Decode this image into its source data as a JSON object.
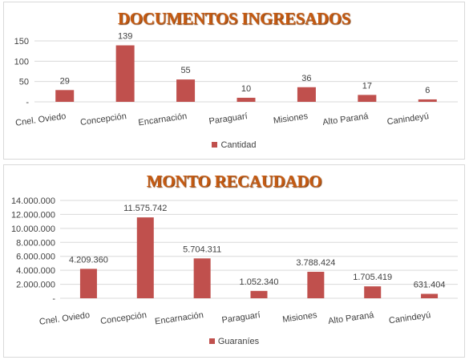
{
  "chart_data": [
    {
      "type": "bar",
      "title": "DOCUMENTOS INGRESADOS",
      "categories": [
        "Cnel. Oviedo",
        "Concepción",
        "Encarnación",
        "Paraguarí",
        "Misiones",
        "Alto Paraná",
        "Canindeyú"
      ],
      "series": [
        {
          "name": "Cantidad",
          "values": [
            29,
            139,
            55,
            10,
            36,
            17,
            6
          ]
        }
      ],
      "data_labels": [
        "29",
        "139",
        "55",
        "10",
        "36",
        "17",
        "6"
      ],
      "yticks": [
        0,
        50,
        100,
        150
      ],
      "ytick_labels": [
        "-",
        "50",
        "100",
        "150"
      ],
      "ylim": [
        0,
        150
      ],
      "grid": true,
      "legend": "bottom",
      "color": "#c0504d"
    },
    {
      "type": "bar",
      "title": "MONTO RECAUDADO",
      "categories": [
        "Cnel. Oviedo",
        "Concepción",
        "Encarnación",
        "Paraguarí",
        "Misiones",
        "Alto Paraná",
        "Canindeyú"
      ],
      "series": [
        {
          "name": "Guaraníes",
          "values": [
            4209360,
            11575742,
            5704311,
            1052340,
            3788424,
            1705419,
            631404
          ]
        }
      ],
      "data_labels": [
        "4.209.360",
        "11.575.742",
        "5.704.311",
        "1.052.340",
        "3.788.424",
        "1.705.419",
        "631.404"
      ],
      "yticks": [
        0,
        2000000,
        4000000,
        6000000,
        8000000,
        10000000,
        12000000,
        14000000
      ],
      "ytick_labels": [
        "-",
        "2.000.000",
        "4.000.000",
        "6.000.000",
        "8.000.000",
        "10.000.000",
        "12.000.000",
        "14.000.000"
      ],
      "ylim": [
        0,
        14000000
      ],
      "grid": true,
      "legend": "bottom",
      "color": "#c0504d"
    }
  ]
}
